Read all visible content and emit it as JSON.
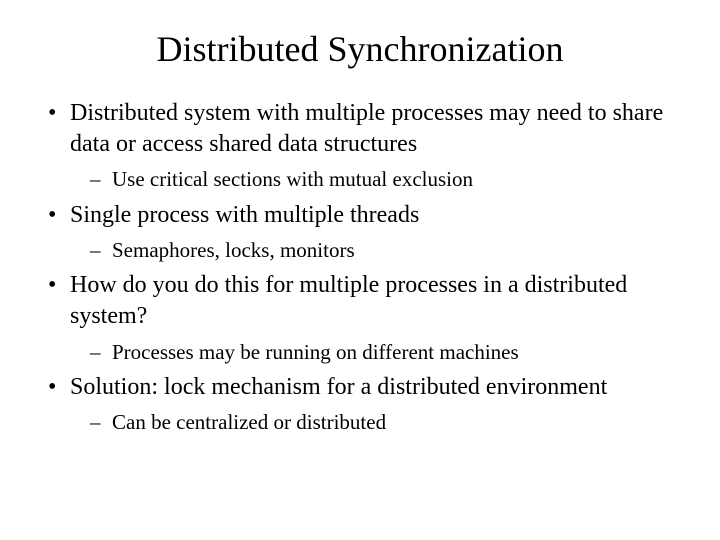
{
  "slide": {
    "title": "Distributed Synchronization",
    "title_fontsize": 36,
    "title_color": "#000000",
    "body_fontsize": 24,
    "sub_fontsize": 21,
    "background_color": "#ffffff",
    "text_color": "#000000",
    "font_family": "Times New Roman",
    "bullets": [
      {
        "text": "Distributed system with multiple processes may need to share data or access shared data structures",
        "sub": [
          {
            "text": "Use critical sections with mutual exclusion"
          }
        ]
      },
      {
        "text": "Single process with multiple threads",
        "sub": [
          {
            "text": "Semaphores, locks, monitors"
          }
        ]
      },
      {
        "text": "How do you do this for multiple processes in a distributed system?",
        "sub": [
          {
            "text": "Processes may be running on different machines"
          }
        ]
      },
      {
        "text": "Solution: lock mechanism for a distributed environment",
        "sub": [
          {
            "text": "Can be centralized or distributed"
          }
        ]
      }
    ]
  }
}
